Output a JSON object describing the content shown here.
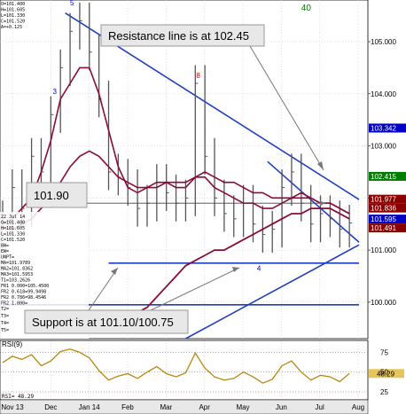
{
  "chart_data": {
    "type": "line",
    "title": "",
    "instrument_header": {
      "lines": [
        "O=101.400",
        "H=101.605",
        "L=101.330",
        "C=101.520",
        "A=+0.125"
      ]
    },
    "date_block": {
      "date": "22 Jul 14",
      "lines": [
        "O=101.400",
        "H=101.605",
        "L=101.330",
        "C=101.520",
        "BW=",
        "EW=",
        "UNPT=",
        "MA=101.9789",
        "MA2=101.8362",
        "MA3=101.5953",
        "T1=103.2626",
        "FR1 0.000=105.4500",
        "FR2 0.618=99.9498",
        "FR2 0.786=98.4546",
        "FR2 1.000="
      ],
      "extra_rows": [
        "T2=",
        "T3=",
        "T4=",
        "T5="
      ]
    },
    "x_tick_labels": [
      "Nov 13",
      "Dec",
      "Jan 14",
      "Feb",
      "Mar",
      "Apr",
      "May",
      "Jun",
      "Jul",
      "Aug"
    ],
    "y_ticks": [
      100.0,
      101.0,
      102.0,
      103.0,
      104.0,
      105.0
    ],
    "y_tick_labels": [
      "100.000",
      "101.000",
      "102.000",
      "103.000",
      "104.000",
      "105.000"
    ],
    "ylim": [
      99.3,
      105.8
    ],
    "xlim": [
      0,
      37
    ],
    "grid": true,
    "series": [
      {
        "values": [
          101.6,
          102.2,
          101.8,
          102.8,
          102.5,
          103.6,
          104.5,
          105.2,
          105.4,
          104.8,
          103.9,
          102.5,
          102.4,
          102.2,
          101.8,
          101.9,
          102.3,
          102.1,
          101.9,
          102.0,
          104.2,
          102.8,
          102.0,
          101.7,
          101.6,
          101.9,
          101.5,
          101.3,
          101.4,
          102.2,
          102.5,
          101.9,
          101.5,
          101.7,
          101.6,
          101.4,
          101.52
        ]
      },
      {
        "values": [
          101.5,
          101.6,
          101.8,
          102.0,
          102.5,
          103.1,
          103.9,
          104.2,
          104.5,
          104.5,
          104.0,
          103.3,
          102.6,
          102.2,
          102.1,
          102.2,
          102.3,
          102.3,
          102.2,
          102.2,
          102.4,
          102.4,
          102.2,
          102.1,
          102.0,
          101.9,
          101.9,
          101.8,
          101.8,
          101.9,
          102.0,
          102.1,
          102.0,
          101.9,
          101.9,
          101.8,
          101.7
        ]
      },
      {
        "values": [
          101.4,
          101.4,
          101.5,
          101.6,
          101.8,
          102.0,
          102.3,
          102.6,
          102.8,
          102.9,
          102.8,
          102.6,
          102.4,
          102.3,
          102.2,
          102.2,
          102.2,
          102.3,
          102.3,
          102.3,
          102.4,
          102.5,
          102.4,
          102.3,
          102.3,
          102.2,
          102.1,
          102.1,
          102.0,
          102.0,
          102.0,
          102.0,
          102.0,
          101.9,
          101.9,
          101.8,
          101.7
        ]
      },
      {
        "values": [
          null,
          null,
          null,
          null,
          null,
          null,
          null,
          null,
          null,
          null,
          null,
          null,
          99.6,
          99.7,
          99.8,
          99.9,
          100.1,
          100.3,
          100.5,
          100.7,
          100.8,
          100.9,
          101.0,
          101.0,
          101.1,
          101.2,
          101.3,
          101.4,
          101.5,
          101.6,
          101.7,
          101.7,
          101.8,
          101.8,
          101.8,
          101.7,
          101.6
        ]
      }
    ],
    "price_tags": [
      {
        "value": 103.342,
        "label": "103.342",
        "color": "#0000c8"
      },
      {
        "value": 102.415,
        "label": "102.415",
        "color": "#008000"
      },
      {
        "value": 101.977,
        "label": "101.977",
        "color": "#8b0000"
      },
      {
        "value": 101.836,
        "label": "101.836",
        "color": "#8b0000"
      },
      {
        "value": 101.595,
        "label": "101.595",
        "color": "#0000c8"
      },
      {
        "value": 101.491,
        "label": "101.491",
        "color": "#8b0000"
      }
    ],
    "trendlines": [
      {
        "from": [
          6.5,
          105.55
        ],
        "to": [
          37,
          101.97
        ]
      },
      {
        "from": [
          27.5,
          102.7
        ],
        "to": [
          37,
          101.15
        ]
      },
      {
        "from": [
          19,
          99.3
        ],
        "to": [
          37,
          101.1
        ]
      },
      {
        "from": [
          11,
          100.75
        ],
        "to": [
          37,
          100.75
        ]
      },
      {
        "from": [
          0,
          99.95
        ],
        "to": [
          37,
          99.95
        ]
      }
    ],
    "horizontal_markers": [
      {
        "value": 101.9,
        "label": "101.90"
      }
    ],
    "annotations": [
      {
        "text": "Resistance line is at 102.45"
      },
      {
        "text": "101.90"
      },
      {
        "text": "Support is at 101.10/100.75"
      }
    ],
    "wave_labels": [
      {
        "text": "5",
        "x": 7.0,
        "y": 105.7,
        "color": "#0000c8"
      },
      {
        "text": "3",
        "x": 5.2,
        "y": 104.0,
        "color": "#0000c8"
      },
      {
        "text": "4",
        "x": 26.4,
        "y": 100.6,
        "color": "#0000c8"
      },
      {
        "text": "8",
        "x": 20.1,
        "y": 104.3,
        "color": "#c80000"
      },
      {
        "text": "40",
        "x": 31.0,
        "y": 105.6,
        "color": "#008000"
      }
    ],
    "rsi": {
      "label": "RSI(9)",
      "ticks": [
        25,
        50,
        75
      ],
      "ylim": [
        15,
        90
      ],
      "values": [
        62,
        70,
        66,
        72,
        58,
        64,
        76,
        79,
        75,
        68,
        52,
        40,
        45,
        48,
        42,
        50,
        57,
        48,
        44,
        49,
        74,
        55,
        44,
        40,
        42,
        50,
        44,
        36,
        41,
        58,
        64,
        50,
        40,
        46,
        44,
        38,
        48.29
      ],
      "current_label": "48.29",
      "readout": "RSI= 48.29"
    }
  }
}
